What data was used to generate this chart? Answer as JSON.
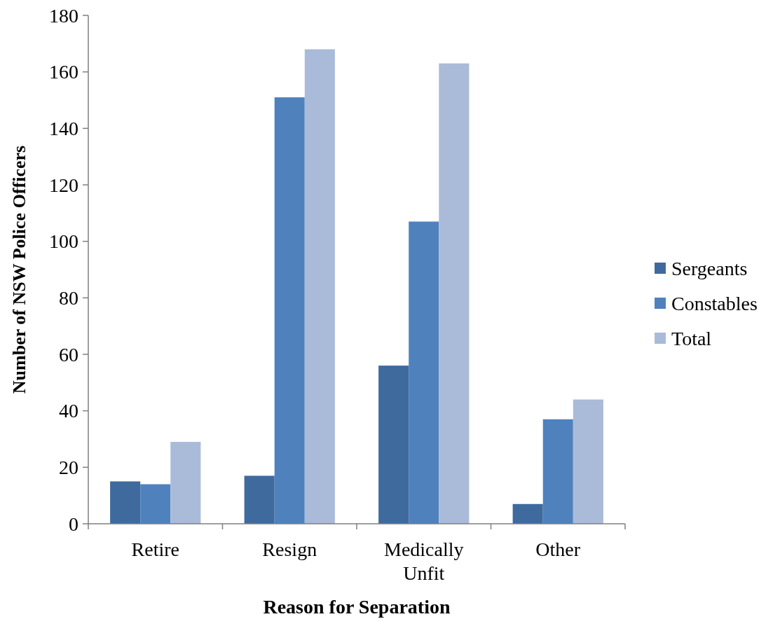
{
  "chart_data": {
    "type": "bar",
    "xlabel": "Reason for Separation",
    "ylabel": "Number of NSW Police Officers",
    "categories": [
      "Retire",
      "Resign",
      "Medically Unfit",
      "Other"
    ],
    "series": [
      {
        "name": "Sergeants",
        "color": "#3f6a9e",
        "values": [
          15,
          17,
          56,
          7
        ]
      },
      {
        "name": "Constables",
        "color": "#4f81bd",
        "values": [
          14,
          151,
          107,
          37
        ]
      },
      {
        "name": "Total",
        "color": "#aabbd9",
        "values": [
          29,
          168,
          163,
          44
        ]
      }
    ],
    "ylim": [
      0,
      180
    ],
    "yticks": [
      0,
      20,
      40,
      60,
      80,
      100,
      120,
      140,
      160,
      180
    ],
    "grid": false,
    "legend": "right"
  }
}
